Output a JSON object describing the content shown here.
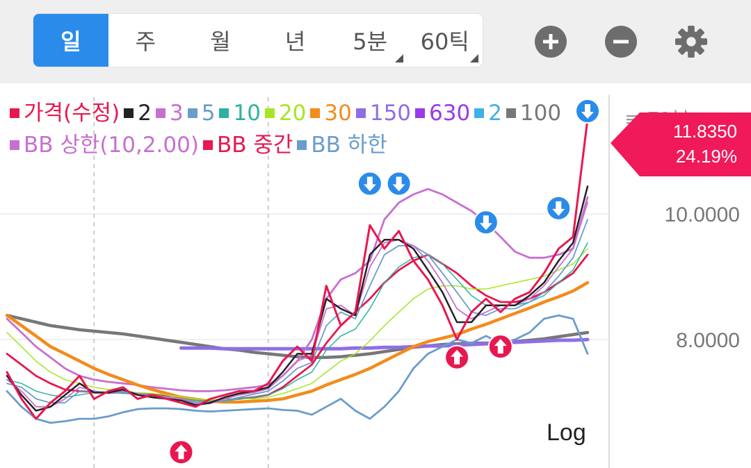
{
  "toolbar": {
    "tabs": [
      {
        "label": "일",
        "active": true,
        "has_corner": false
      },
      {
        "label": "주",
        "active": false,
        "has_corner": false
      },
      {
        "label": "월",
        "active": false,
        "has_corner": false
      },
      {
        "label": "년",
        "active": false,
        "has_corner": false
      },
      {
        "label": "5분",
        "active": false,
        "has_corner": true
      },
      {
        "label": "60틱",
        "active": false,
        "has_corner": true
      }
    ],
    "buttons": [
      "zoom-in-icon",
      "zoom-out-icon",
      "gear-icon"
    ]
  },
  "legend": [
    {
      "label": "가격(수정)",
      "color": "#e8174f"
    },
    {
      "label": "2",
      "color": "#222222"
    },
    {
      "label": "3",
      "color": "#c76fd1"
    },
    {
      "label": "5",
      "color": "#6a9ccc"
    },
    {
      "label": "10",
      "color": "#2bb3a0"
    },
    {
      "label": "20",
      "color": "#a6e622"
    },
    {
      "label": "30",
      "color": "#f28c1c"
    },
    {
      "label": "150",
      "color": "#8f6ee6"
    },
    {
      "label": "630",
      "color": "#9a39e8"
    },
    {
      "label": "2",
      "color": "#3fb0e8"
    },
    {
      "label": "100",
      "color": "#777777"
    },
    {
      "label": "BB 상한(10,2.00)",
      "color": "#c76fd1"
    },
    {
      "label": "BB 중간",
      "color": "#e8174f"
    },
    {
      "label": "BB 하한",
      "color": "#6a9ccc"
    }
  ],
  "current_price": {
    "value": "11.8350",
    "change": "24.19%",
    "color": "#f0195a"
  },
  "scale_label": "Log",
  "partial_header": "≡ 71분",
  "chart_data": {
    "type": "line",
    "y_scale": "log",
    "ylim": [
      6.4,
      12.3
    ],
    "y_ticks": [
      {
        "value": 10.0,
        "label": "10.0000"
      },
      {
        "value": 8.0,
        "label": "8.0000"
      }
    ],
    "x_count": 41,
    "series": [
      {
        "name": "가격(수정)",
        "color": "#e8174f",
        "width": 3,
        "values": [
          7.55,
          7.2,
          6.95,
          7.15,
          7.3,
          7.5,
          7.2,
          7.3,
          7.35,
          7.2,
          7.25,
          7.2,
          7.15,
          7.1,
          7.2,
          7.25,
          7.3,
          7.3,
          7.4,
          7.7,
          7.9,
          7.7,
          8.8,
          8.2,
          8.4,
          9.8,
          9.4,
          9.7,
          9.2,
          8.9,
          8.5,
          8.0,
          8.4,
          8.6,
          8.4,
          8.6,
          8.7,
          9.0,
          9.4,
          9.6,
          11.835
        ]
      },
      {
        "name": "2",
        "color": "#222222",
        "width": 2.5,
        "values": [
          7.5,
          7.25,
          7.05,
          7.1,
          7.25,
          7.4,
          7.28,
          7.28,
          7.32,
          7.25,
          7.22,
          7.2,
          7.18,
          7.12,
          7.15,
          7.22,
          7.27,
          7.3,
          7.35,
          7.55,
          7.8,
          7.8,
          8.6,
          8.45,
          8.35,
          9.3,
          9.55,
          9.55,
          9.4,
          9.05,
          8.7,
          8.25,
          8.25,
          8.5,
          8.5,
          8.5,
          8.65,
          8.85,
          9.2,
          9.5,
          10.5
        ]
      },
      {
        "name": "3",
        "color": "#c76fd1",
        "width": 1.8,
        "values": [
          7.45,
          7.3,
          7.1,
          7.1,
          7.2,
          7.35,
          7.3,
          7.27,
          7.3,
          7.27,
          7.23,
          7.22,
          7.2,
          7.14,
          7.14,
          7.2,
          7.25,
          7.28,
          7.33,
          7.5,
          7.7,
          7.78,
          8.45,
          8.5,
          8.35,
          9.1,
          9.5,
          9.55,
          9.45,
          9.2,
          8.85,
          8.45,
          8.3,
          8.4,
          8.5,
          8.5,
          8.6,
          8.8,
          9.1,
          9.4,
          10.2
        ]
      },
      {
        "name": "5",
        "color": "#6a9ccc",
        "width": 1.8,
        "values": [
          7.4,
          7.35,
          7.2,
          7.15,
          7.15,
          7.3,
          7.3,
          7.28,
          7.28,
          7.27,
          7.24,
          7.22,
          7.2,
          7.16,
          7.15,
          7.18,
          7.22,
          7.26,
          7.3,
          7.43,
          7.6,
          7.68,
          8.2,
          8.4,
          8.3,
          8.8,
          9.3,
          9.45,
          9.45,
          9.3,
          9.0,
          8.7,
          8.4,
          8.35,
          8.45,
          8.45,
          8.55,
          8.7,
          8.95,
          9.25,
          9.9
        ]
      },
      {
        "name": "10",
        "color": "#2bb3a0",
        "width": 1.5,
        "values": [
          7.45,
          7.4,
          7.3,
          7.25,
          7.22,
          7.25,
          7.28,
          7.28,
          7.27,
          7.26,
          7.25,
          7.23,
          7.2,
          7.18,
          7.17,
          7.17,
          7.2,
          7.22,
          7.25,
          7.33,
          7.45,
          7.55,
          7.85,
          8.05,
          8.15,
          8.45,
          8.85,
          9.1,
          9.25,
          9.3,
          9.15,
          8.9,
          8.65,
          8.5,
          8.5,
          8.5,
          8.55,
          8.65,
          8.85,
          9.05,
          9.5
        ]
      },
      {
        "name": "20",
        "color": "#a6e622",
        "width": 1.5,
        "values": [
          8.1,
          7.9,
          7.7,
          7.55,
          7.45,
          7.4,
          7.35,
          7.32,
          7.3,
          7.28,
          7.27,
          7.25,
          7.23,
          7.2,
          7.19,
          7.19,
          7.2,
          7.2,
          7.22,
          7.27,
          7.33,
          7.4,
          7.55,
          7.7,
          7.8,
          7.98,
          8.2,
          8.4,
          8.6,
          8.75,
          8.8,
          8.8,
          8.75,
          8.75,
          8.8,
          8.85,
          8.9,
          8.95,
          9.05,
          9.15,
          9.4
        ]
      },
      {
        "name": "30",
        "color": "#f28c1c",
        "width": 4.5,
        "values": [
          8.35,
          8.2,
          8.05,
          7.9,
          7.8,
          7.7,
          7.6,
          7.52,
          7.45,
          7.38,
          7.32,
          7.27,
          7.22,
          7.19,
          7.17,
          7.16,
          7.16,
          7.17,
          7.18,
          7.2,
          7.25,
          7.3,
          7.38,
          7.45,
          7.52,
          7.6,
          7.7,
          7.8,
          7.9,
          7.97,
          8.02,
          8.07,
          8.15,
          8.22,
          8.3,
          8.38,
          8.46,
          8.55,
          8.63,
          8.72,
          8.85
        ]
      }
    ],
    "series_ma100": {
      "name": "100",
      "color": "#777777",
      "width": 4.5,
      "values": [
        8.35,
        8.3,
        8.25,
        8.2,
        8.17,
        8.14,
        8.12,
        8.1,
        8.08,
        8.05,
        8.02,
        7.99,
        7.96,
        7.93,
        7.9,
        7.87,
        7.85,
        7.82,
        7.8,
        7.78,
        7.76,
        7.75,
        7.75,
        7.76,
        7.78,
        7.8,
        7.83,
        7.86,
        7.89,
        7.91,
        7.93,
        7.94,
        7.95,
        7.95,
        7.96,
        7.97,
        7.99,
        8.01,
        8.04,
        8.07,
        8.1
      ]
    },
    "series_ma150": {
      "name": "150",
      "color": "#8f6ee6",
      "width": 5,
      "start_index": 12,
      "values": [
        7.88,
        7.88,
        7.88,
        7.87,
        7.87,
        7.87,
        7.87,
        7.87,
        7.87,
        7.87,
        7.87,
        7.87,
        7.88,
        7.88,
        7.89,
        7.89,
        7.9,
        7.91,
        7.91,
        7.92,
        7.93,
        7.94,
        7.95,
        7.96,
        7.97,
        7.98,
        7.99,
        7.99,
        8.0
      ]
    },
    "bands": [
      {
        "name": "BB 상한(10,2.00)",
        "color": "#c76fd1",
        "width": 2.8,
        "values": [
          8.3,
          8.1,
          7.9,
          7.75,
          7.6,
          7.5,
          7.45,
          7.42,
          7.4,
          7.38,
          7.35,
          7.33,
          7.31,
          7.3,
          7.3,
          7.31,
          7.33,
          7.35,
          7.38,
          7.5,
          7.7,
          8.0,
          8.6,
          8.9,
          9.0,
          9.2,
          9.9,
          10.2,
          10.35,
          10.45,
          10.35,
          10.2,
          10.05,
          9.85,
          9.6,
          9.35,
          9.25,
          9.25,
          9.3,
          9.4,
          10.3
        ]
      },
      {
        "name": "BB 중간",
        "color": "#e8174f",
        "width": 2.8,
        "values": [
          7.8,
          7.65,
          7.5,
          7.4,
          7.32,
          7.3,
          7.29,
          7.28,
          7.28,
          7.27,
          7.26,
          7.25,
          7.23,
          7.2,
          7.18,
          7.19,
          7.2,
          7.22,
          7.25,
          7.35,
          7.5,
          7.65,
          7.95,
          8.2,
          8.4,
          8.6,
          8.85,
          9.05,
          9.2,
          9.3,
          9.15,
          9.0,
          8.8,
          8.65,
          8.55,
          8.55,
          8.6,
          8.7,
          8.85,
          9.0,
          9.3
        ]
      },
      {
        "name": "BB 하한",
        "color": "#6a9ccc",
        "width": 2.8,
        "values": [
          7.3,
          7.1,
          6.95,
          6.9,
          6.92,
          6.95,
          6.95,
          6.98,
          7.03,
          7.07,
          7.08,
          7.08,
          7.07,
          7.05,
          7.04,
          7.05,
          7.06,
          7.07,
          7.08,
          7.06,
          7.05,
          7.0,
          7.1,
          7.2,
          7.05,
          6.95,
          7.1,
          7.3,
          7.6,
          7.8,
          7.9,
          8.0,
          7.95,
          8.05,
          7.95,
          8.0,
          8.1,
          8.3,
          8.35,
          8.3,
          7.8
        ]
      }
    ],
    "markers": [
      {
        "type": "sell",
        "index": 40,
        "value": 12.0
      },
      {
        "type": "sell",
        "index": 25,
        "value": 10.55
      },
      {
        "type": "sell",
        "index": 27,
        "value": 10.55
      },
      {
        "type": "sell",
        "index": 33,
        "value": 9.85
      },
      {
        "type": "sell",
        "index": 38,
        "value": 10.1
      },
      {
        "type": "buy",
        "index": 12,
        "value": 6.55
      },
      {
        "type": "buy",
        "index": 31,
        "value": 7.75
      },
      {
        "type": "buy",
        "index": 34,
        "value": 7.9
      }
    ],
    "x_grid_dashed": [
      6,
      18
    ]
  }
}
